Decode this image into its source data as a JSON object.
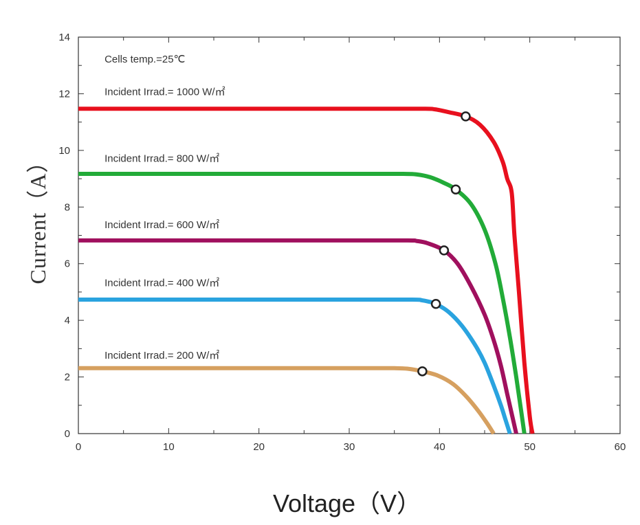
{
  "chart_data": {
    "type": "line",
    "title": "",
    "xlabel": "Voltage（V）",
    "ylabel": "Current（A）",
    "xlim": [
      0,
      60
    ],
    "ylim": [
      0,
      14
    ],
    "xticks": [
      0,
      10,
      20,
      30,
      40,
      50,
      60
    ],
    "yticks": [
      0,
      2,
      4,
      6,
      8,
      10,
      12,
      14
    ],
    "grid": false,
    "legend": "none",
    "annotations": [
      {
        "text": "Cells temp.=25℃",
        "x": 2.9,
        "y": 13.1
      },
      {
        "text": "Incident Irrad.= 1000 W/㎡",
        "x": 2.9,
        "y": 11.95
      },
      {
        "text": "Incident Irrad.= 800 W/㎡",
        "x": 2.9,
        "y": 9.6
      },
      {
        "text": "Incident Irrad.= 600 W/㎡",
        "x": 2.9,
        "y": 7.25
      },
      {
        "text": "Incident Irrad.= 400 W/㎡",
        "x": 2.9,
        "y": 5.2
      },
      {
        "text": "Incident Irrad.= 200 W/㎡",
        "x": 2.9,
        "y": 2.65
      }
    ],
    "series": [
      {
        "color": "#e8101e",
        "mpp": [
          42.9,
          11.2
        ],
        "x": [
          0,
          10,
          20,
          30,
          38,
          39.5,
          41,
          42.9,
          44.5,
          46,
          47,
          47.5,
          48,
          48.3,
          48.8,
          49.4,
          50,
          50.3
        ],
        "y": [
          11.47,
          11.47,
          11.47,
          11.47,
          11.47,
          11.45,
          11.35,
          11.2,
          10.9,
          10.3,
          9.6,
          9.0,
          8.5,
          7.0,
          5.0,
          2.5,
          0.6,
          0
        ]
      },
      {
        "color": "#22ab38",
        "mpp": [
          41.8,
          8.62
        ],
        "x": [
          0,
          10,
          20,
          30,
          36,
          37.5,
          39,
          40.5,
          41.8,
          43.5,
          45,
          46.2,
          47,
          47.8,
          48.5,
          49,
          49.4
        ],
        "y": [
          9.17,
          9.17,
          9.17,
          9.17,
          9.17,
          9.15,
          9.05,
          8.85,
          8.62,
          8.1,
          7.2,
          6.0,
          4.8,
          3.4,
          2.0,
          0.9,
          0
        ]
      },
      {
        "color": "#a0105e",
        "mpp": [
          40.5,
          6.47
        ],
        "x": [
          0,
          10,
          20,
          30,
          36.5,
          37.5,
          38.7,
          40.5,
          42,
          43.5,
          45,
          46,
          46.8,
          47.5,
          48,
          48.5
        ],
        "y": [
          6.82,
          6.82,
          6.82,
          6.82,
          6.82,
          6.8,
          6.72,
          6.47,
          6.0,
          5.2,
          4.2,
          3.3,
          2.4,
          1.4,
          0.7,
          0
        ]
      },
      {
        "color": "#2aa3df",
        "mpp": [
          39.6,
          4.58
        ],
        "x": [
          0,
          10,
          20,
          30,
          37,
          38,
          38.8,
          39.6,
          41,
          42.5,
          44,
          45,
          46,
          46.8,
          47.3,
          47.8
        ],
        "y": [
          4.73,
          4.73,
          4.73,
          4.73,
          4.73,
          4.71,
          4.66,
          4.58,
          4.3,
          3.8,
          3.1,
          2.5,
          1.7,
          1.0,
          0.5,
          0
        ]
      },
      {
        "color": "#d6a060",
        "mpp": [
          38.1,
          2.2
        ],
        "x": [
          0,
          10,
          20,
          30,
          35,
          36.5,
          38.1,
          39.8,
          41.5,
          43,
          44.3,
          45.3,
          46
        ],
        "y": [
          2.31,
          2.31,
          2.31,
          2.31,
          2.31,
          2.29,
          2.2,
          2.05,
          1.75,
          1.3,
          0.8,
          0.35,
          0
        ]
      }
    ]
  }
}
